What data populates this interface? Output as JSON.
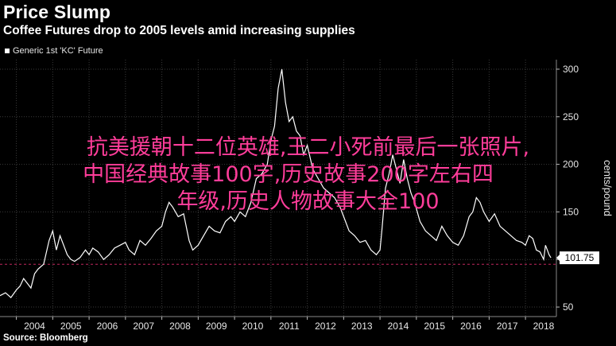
{
  "title": "Price Slump",
  "subtitle": "Coffee Futures drop to 2005 levels amid increasing supplies",
  "source": "Source: Bloomberg",
  "overlay_lines": [
    "抗美援朝十二位英雄,王二小死前最后一张照片,",
    "中国经典故事100字,历史故事200字左右四",
    "年级,历史人物故事大全100"
  ],
  "colors": {
    "background": "#000000",
    "line": "#ffffff",
    "reference_line": "#c0275d",
    "overlay_text": "#ff3d9a",
    "axis_text": "#e6e6e6"
  },
  "chart_data": {
    "type": "line",
    "title": "Price Slump",
    "legend": [
      "Generic 1st 'KC' Future"
    ],
    "legend_placement": "top-left",
    "ylabel": "cents/pound",
    "y_axis_side": "right",
    "ylim": [
      40,
      310
    ],
    "yticks": [
      50,
      100,
      150,
      200,
      250,
      300
    ],
    "xlim": [
      2003.55,
      2018.85
    ],
    "xticks": [
      "2004",
      "2005",
      "2006",
      "2007",
      "2008",
      "2009",
      "2010",
      "2011",
      "2012",
      "2013",
      "2014",
      "2015",
      "2016",
      "2017",
      "2018"
    ],
    "last_value_label": "101.75",
    "reference_line_value": 95,
    "series": [
      {
        "name": "Generic 1st 'KC' Future",
        "x": [
          2003.55,
          2003.7,
          2003.85,
          2004.0,
          2004.1,
          2004.2,
          2004.3,
          2004.4,
          2004.5,
          2004.6,
          2004.75,
          2004.9,
          2005.0,
          2005.1,
          2005.2,
          2005.3,
          2005.4,
          2005.5,
          2005.6,
          2005.75,
          2005.9,
          2006.0,
          2006.1,
          2006.25,
          2006.4,
          2006.55,
          2006.7,
          2006.85,
          2007.0,
          2007.1,
          2007.25,
          2007.4,
          2007.55,
          2007.7,
          2007.85,
          2008.0,
          2008.1,
          2008.2,
          2008.3,
          2008.45,
          2008.6,
          2008.75,
          2008.85,
          2009.0,
          2009.15,
          2009.3,
          2009.45,
          2009.6,
          2009.75,
          2009.9,
          2010.0,
          2010.15,
          2010.3,
          2010.45,
          2010.6,
          2010.75,
          2010.9,
          2011.0,
          2011.1,
          2011.2,
          2011.3,
          2011.4,
          2011.5,
          2011.6,
          2011.7,
          2011.8,
          2011.9,
          2012.0,
          2012.15,
          2012.3,
          2012.45,
          2012.6,
          2012.75,
          2012.9,
          2013.0,
          2013.15,
          2013.3,
          2013.45,
          2013.6,
          2013.75,
          2013.9,
          2014.0,
          2014.05,
          2014.15,
          2014.25,
          2014.35,
          2014.45,
          2014.55,
          2014.65,
          2014.75,
          2014.85,
          2014.95,
          2015.1,
          2015.25,
          2015.4,
          2015.55,
          2015.7,
          2015.85,
          2016.0,
          2016.15,
          2016.3,
          2016.45,
          2016.55,
          2016.65,
          2016.75,
          2016.85,
          2017.0,
          2017.15,
          2017.3,
          2017.45,
          2017.6,
          2017.75,
          2017.9,
          2018.0,
          2018.1,
          2018.2,
          2018.3,
          2018.4,
          2018.5,
          2018.55,
          2018.6,
          2018.65,
          2018.7
        ],
        "y": [
          62,
          65,
          60,
          68,
          72,
          80,
          75,
          70,
          85,
          90,
          95,
          120,
          130,
          110,
          125,
          115,
          105,
          100,
          98,
          102,
          110,
          105,
          112,
          108,
          100,
          105,
          112,
          115,
          118,
          110,
          105,
          120,
          115,
          122,
          130,
          135,
          150,
          160,
          155,
          145,
          148,
          120,
          110,
          115,
          125,
          135,
          130,
          128,
          140,
          145,
          140,
          150,
          145,
          160,
          185,
          190,
          200,
          225,
          240,
          280,
          300,
          265,
          245,
          250,
          235,
          230,
          210,
          220,
          195,
          185,
          175,
          170,
          165,
          155,
          145,
          130,
          125,
          118,
          120,
          110,
          105,
          110,
          130,
          175,
          190,
          210,
          195,
          180,
          205,
          185,
          170,
          160,
          140,
          130,
          125,
          120,
          135,
          125,
          118,
          115,
          125,
          145,
          150,
          165,
          160,
          150,
          140,
          148,
          135,
          130,
          125,
          120,
          118,
          115,
          125,
          122,
          110,
          108,
          100,
          115,
          110,
          105,
          101.75
        ]
      }
    ]
  }
}
